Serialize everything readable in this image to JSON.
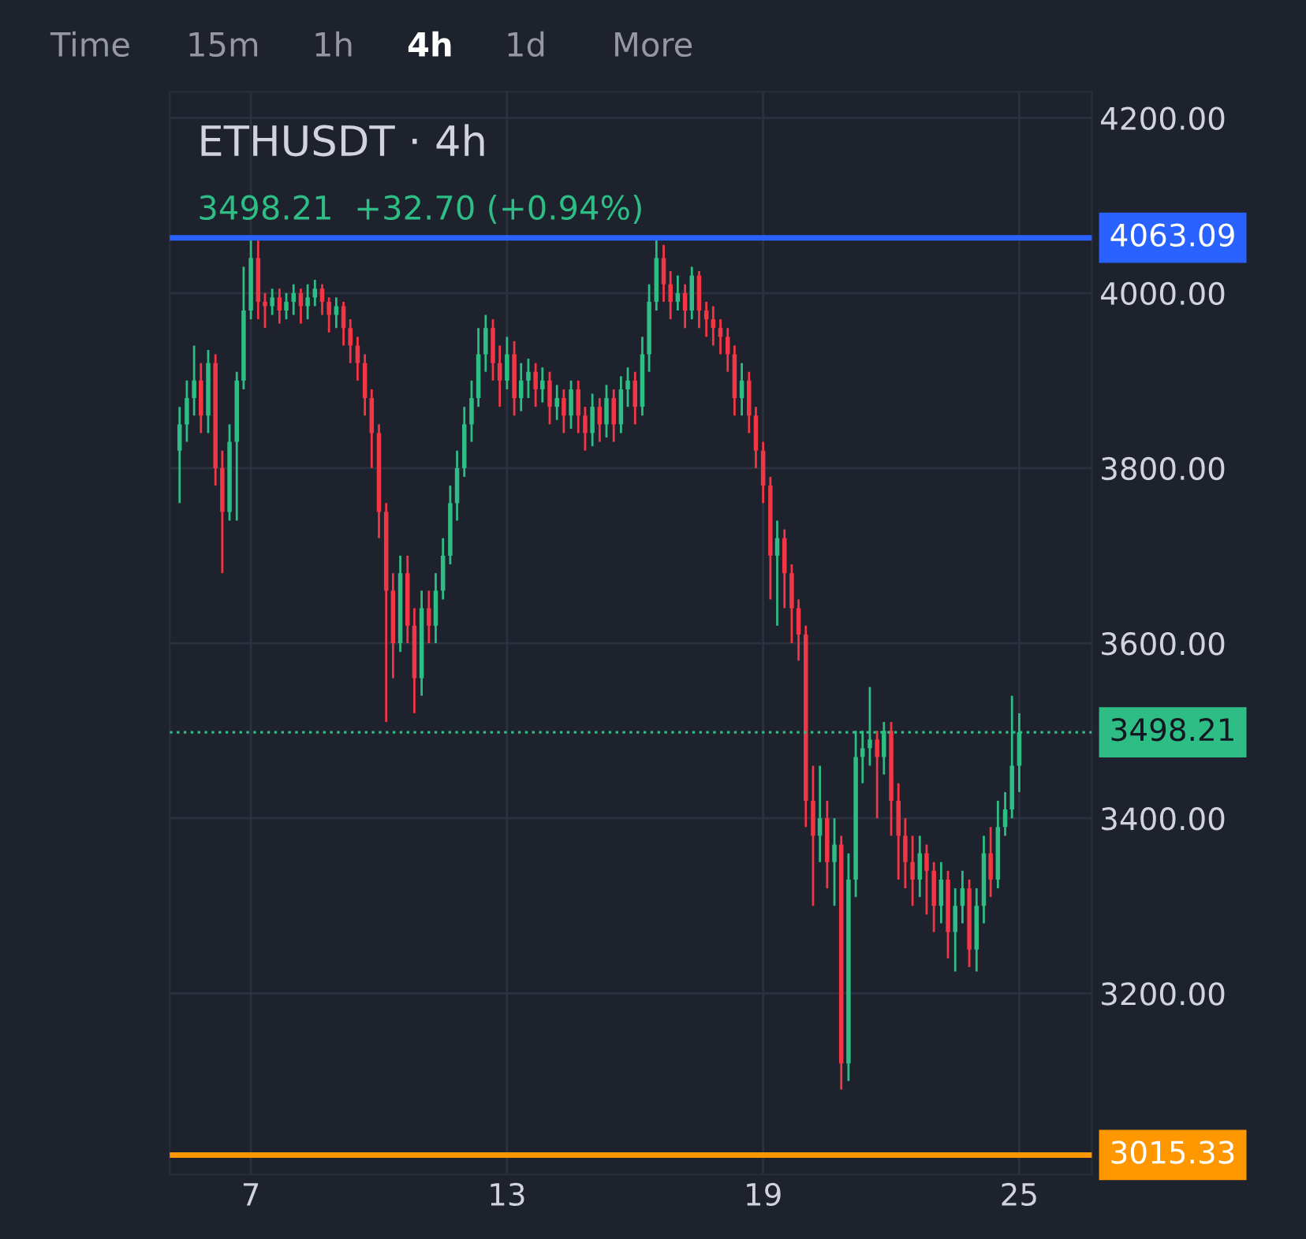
{
  "chart_data": {
    "type": "candlestick",
    "title": "ETHUSDT · 4h",
    "subtitle": "3498.21  +32.70 (+0.94%)",
    "annotations": [
      "Time",
      "15m",
      "1h",
      "4h",
      "1d",
      "More"
    ],
    "x": [
      5.33,
      5.5,
      5.67,
      5.83,
      6,
      6.17,
      6.33,
      6.5,
      6.67,
      6.83,
      7,
      7.17,
      7.33,
      7.5,
      7.67,
      7.83,
      8,
      8.17,
      8.33,
      8.5,
      8.67,
      8.83,
      9,
      9.17,
      9.33,
      9.5,
      9.67,
      9.83,
      10,
      10.17,
      10.33,
      10.5,
      10.67,
      10.83,
      11,
      11.17,
      11.33,
      11.5,
      11.67,
      11.83,
      12,
      12.17,
      12.33,
      12.5,
      12.67,
      12.83,
      13,
      13.17,
      13.33,
      13.5,
      13.67,
      13.83,
      14,
      14.17,
      14.33,
      14.5,
      14.67,
      14.83,
      15,
      15.17,
      15.33,
      15.5,
      15.67,
      15.83,
      16,
      16.17,
      16.33,
      16.5,
      16.67,
      16.83,
      17,
      17.17,
      17.33,
      17.5,
      17.67,
      17.83,
      18,
      18.17,
      18.33,
      18.5,
      18.67,
      18.83,
      19,
      19.17,
      19.33,
      19.5,
      19.67,
      19.83,
      20,
      20.17,
      20.33,
      20.5,
      20.67,
      20.83,
      21,
      21.17,
      21.33,
      21.5,
      21.67,
      21.83,
      22,
      22.17,
      22.33,
      22.5,
      22.67,
      22.83,
      23,
      23.17,
      23.33,
      23.5,
      23.67,
      23.83,
      24,
      24.17,
      24.33,
      24.5,
      24.67,
      24.83,
      25
    ],
    "ohlc": [
      [
        3820,
        3870,
        3760,
        3850
      ],
      [
        3850,
        3900,
        3830,
        3880
      ],
      [
        3880,
        3940,
        3860,
        3900
      ],
      [
        3900,
        3920,
        3840,
        3860
      ],
      [
        3860,
        3935,
        3840,
        3920
      ],
      [
        3920,
        3930,
        3780,
        3800
      ],
      [
        3800,
        3820,
        3680,
        3750
      ],
      [
        3750,
        3850,
        3740,
        3830
      ],
      [
        3830,
        3910,
        3740,
        3900
      ],
      [
        3900,
        4030,
        3890,
        3980
      ],
      [
        3980,
        4065,
        3970,
        4040
      ],
      [
        4040,
        4060,
        3970,
        3990
      ],
      [
        3990,
        4000,
        3960,
        3985
      ],
      [
        3985,
        4005,
        3975,
        3995
      ],
      [
        3995,
        4005,
        3965,
        3980
      ],
      [
        3980,
        4000,
        3970,
        3990
      ],
      [
        3990,
        4010,
        3975,
        4000
      ],
      [
        4000,
        4005,
        3965,
        3985
      ],
      [
        3985,
        4010,
        3970,
        3995
      ],
      [
        3995,
        4015,
        3985,
        4005
      ],
      [
        4005,
        4010,
        3975,
        3990
      ],
      [
        3990,
        3995,
        3955,
        3975
      ],
      [
        3975,
        3995,
        3960,
        3985
      ],
      [
        3985,
        3990,
        3940,
        3960
      ],
      [
        3960,
        3970,
        3920,
        3940
      ],
      [
        3940,
        3950,
        3900,
        3920
      ],
      [
        3920,
        3930,
        3860,
        3880
      ],
      [
        3880,
        3890,
        3800,
        3840
      ],
      [
        3840,
        3850,
        3720,
        3750
      ],
      [
        3750,
        3760,
        3510,
        3660
      ],
      [
        3660,
        3680,
        3560,
        3600
      ],
      [
        3600,
        3700,
        3590,
        3680
      ],
      [
        3680,
        3700,
        3600,
        3620
      ],
      [
        3620,
        3640,
        3520,
        3560
      ],
      [
        3560,
        3660,
        3540,
        3640
      ],
      [
        3640,
        3660,
        3600,
        3620
      ],
      [
        3620,
        3680,
        3600,
        3660
      ],
      [
        3660,
        3720,
        3650,
        3700
      ],
      [
        3700,
        3780,
        3690,
        3760
      ],
      [
        3760,
        3820,
        3740,
        3800
      ],
      [
        3800,
        3870,
        3790,
        3850
      ],
      [
        3850,
        3900,
        3830,
        3880
      ],
      [
        3880,
        3960,
        3870,
        3930
      ],
      [
        3930,
        3975,
        3910,
        3960
      ],
      [
        3960,
        3970,
        3900,
        3920
      ],
      [
        3920,
        3940,
        3870,
        3900
      ],
      [
        3900,
        3950,
        3890,
        3930
      ],
      [
        3930,
        3945,
        3860,
        3880
      ],
      [
        3880,
        3920,
        3865,
        3900
      ],
      [
        3900,
        3925,
        3880,
        3910
      ],
      [
        3910,
        3920,
        3870,
        3890
      ],
      [
        3890,
        3915,
        3875,
        3900
      ],
      [
        3900,
        3910,
        3850,
        3870
      ],
      [
        3870,
        3895,
        3855,
        3880
      ],
      [
        3880,
        3890,
        3840,
        3860
      ],
      [
        3860,
        3900,
        3845,
        3890
      ],
      [
        3890,
        3900,
        3840,
        3860
      ],
      [
        3860,
        3870,
        3820,
        3840
      ],
      [
        3840,
        3885,
        3825,
        3870
      ],
      [
        3870,
        3880,
        3830,
        3850
      ],
      [
        3850,
        3895,
        3835,
        3880
      ],
      [
        3880,
        3890,
        3830,
        3850
      ],
      [
        3850,
        3905,
        3840,
        3890
      ],
      [
        3890,
        3915,
        3870,
        3900
      ],
      [
        3900,
        3910,
        3850,
        3870
      ],
      [
        3870,
        3950,
        3860,
        3930
      ],
      [
        3930,
        4010,
        3910,
        3990
      ],
      [
        3990,
        4062,
        3980,
        4040
      ],
      [
        4040,
        4055,
        3990,
        4010
      ],
      [
        4010,
        4025,
        3970,
        3990
      ],
      [
        3990,
        4020,
        3980,
        4000
      ],
      [
        4000,
        4010,
        3960,
        3980
      ],
      [
        3980,
        4030,
        3970,
        4020
      ],
      [
        4020,
        4025,
        3960,
        3980
      ],
      [
        3980,
        3990,
        3950,
        3970
      ],
      [
        3970,
        3985,
        3940,
        3960
      ],
      [
        3960,
        3970,
        3930,
        3950
      ],
      [
        3950,
        3960,
        3910,
        3930
      ],
      [
        3930,
        3940,
        3860,
        3880
      ],
      [
        3880,
        3920,
        3860,
        3900
      ],
      [
        3900,
        3910,
        3840,
        3860
      ],
      [
        3860,
        3870,
        3800,
        3820
      ],
      [
        3820,
        3830,
        3760,
        3780
      ],
      [
        3780,
        3790,
        3650,
        3700
      ],
      [
        3700,
        3740,
        3620,
        3720
      ],
      [
        3720,
        3730,
        3640,
        3680
      ],
      [
        3680,
        3690,
        3600,
        3640
      ],
      [
        3640,
        3650,
        3580,
        3610
      ],
      [
        3610,
        3620,
        3390,
        3420
      ],
      [
        3420,
        3460,
        3300,
        3380
      ],
      [
        3380,
        3460,
        3350,
        3400
      ],
      [
        3400,
        3420,
        3320,
        3350
      ],
      [
        3350,
        3400,
        3300,
        3370
      ],
      [
        3370,
        3380,
        3090,
        3120
      ],
      [
        3120,
        3360,
        3100,
        3330
      ],
      [
        3330,
        3500,
        3310,
        3470
      ],
      [
        3470,
        3500,
        3440,
        3480
      ],
      [
        3480,
        3550,
        3460,
        3490
      ],
      [
        3490,
        3500,
        3400,
        3470
      ],
      [
        3470,
        3510,
        3450,
        3500
      ],
      [
        3500,
        3510,
        3380,
        3420
      ],
      [
        3420,
        3440,
        3330,
        3380
      ],
      [
        3380,
        3400,
        3320,
        3350
      ],
      [
        3350,
        3380,
        3300,
        3330
      ],
      [
        3330,
        3380,
        3310,
        3360
      ],
      [
        3360,
        3370,
        3290,
        3340
      ],
      [
        3340,
        3350,
        3270,
        3300
      ],
      [
        3300,
        3350,
        3280,
        3330
      ],
      [
        3330,
        3340,
        3240,
        3270
      ],
      [
        3270,
        3320,
        3225,
        3300
      ],
      [
        3300,
        3340,
        3280,
        3320
      ],
      [
        3320,
        3330,
        3230,
        3250
      ],
      [
        3250,
        3320,
        3225,
        3300
      ],
      [
        3300,
        3380,
        3280,
        3360
      ],
      [
        3360,
        3390,
        3310,
        3330
      ],
      [
        3330,
        3420,
        3320,
        3390
      ],
      [
        3390,
        3430,
        3380,
        3410
      ],
      [
        3410,
        3540,
        3400,
        3460
      ],
      [
        3460,
        3520,
        3430,
        3498.21
      ]
    ],
    "colors": [
      "#2ebd85",
      "#2ebd85",
      "#2ebd85",
      "#f23645",
      "#2ebd85",
      "#f23645",
      "#f23645",
      "#2ebd85",
      "#2ebd85",
      "#2ebd85",
      "#2ebd85",
      "#f23645",
      "#f23645",
      "#2ebd85",
      "#f23645",
      "#2ebd85",
      "#2ebd85",
      "#f23645",
      "#2ebd85",
      "#2ebd85",
      "#f23645",
      "#f23645",
      "#2ebd85",
      "#f23645",
      "#f23645",
      "#f23645",
      "#f23645",
      "#f23645",
      "#f23645",
      "#f23645",
      "#f23645",
      "#2ebd85",
      "#f23645",
      "#f23645",
      "#2ebd85",
      "#f23645",
      "#2ebd85",
      "#2ebd85",
      "#2ebd85",
      "#2ebd85",
      "#2ebd85",
      "#2ebd85",
      "#2ebd85",
      "#2ebd85",
      "#f23645",
      "#f23645",
      "#2ebd85",
      "#f23645",
      "#2ebd85",
      "#2ebd85",
      "#f23645",
      "#2ebd85",
      "#f23645",
      "#2ebd85",
      "#f23645",
      "#2ebd85",
      "#f23645",
      "#f23645",
      "#2ebd85",
      "#f23645",
      "#2ebd85",
      "#f23645",
      "#2ebd85",
      "#2ebd85",
      "#f23645",
      "#2ebd85",
      "#2ebd85",
      "#2ebd85",
      "#f23645",
      "#f23645",
      "#2ebd85",
      "#f23645",
      "#2ebd85",
      "#f23645",
      "#f23645",
      "#f23645",
      "#f23645",
      "#f23645",
      "#f23645",
      "#2ebd85",
      "#f23645",
      "#f23645",
      "#f23645",
      "#f23645",
      "#2ebd85",
      "#f23645",
      "#f23645",
      "#f23645",
      "#f23645",
      "#f23645",
      "#2ebd85",
      "#f23645",
      "#2ebd85",
      "#f23645",
      "#2ebd85",
      "#2ebd85",
      "#2ebd85",
      "#2ebd85",
      "#f23645",
      "#2ebd85",
      "#f23645",
      "#f23645",
      "#f23645",
      "#f23645",
      "#2ebd85",
      "#f23645",
      "#f23645",
      "#2ebd85",
      "#f23645",
      "#2ebd85",
      "#2ebd85",
      "#f23645",
      "#2ebd85",
      "#2ebd85",
      "#f23645",
      "#2ebd85",
      "#2ebd85",
      "#2ebd85",
      "#2ebd85"
    ],
    "xlim": [
      5.1,
      26.7
    ],
    "xticks": [
      7,
      13,
      19,
      25
    ],
    "ylim": [
      2993,
      4230
    ],
    "yticks": [
      {
        "value": 3200,
        "label": "3200.00"
      },
      {
        "value": 3400,
        "label": "3400.00"
      },
      {
        "value": 3600,
        "label": "3600.00"
      },
      {
        "value": 3800,
        "label": "3800.00"
      },
      {
        "value": 4000,
        "label": "4000.00"
      },
      {
        "value": 4200,
        "label": "4200.00"
      }
    ],
    "grid": true,
    "ref_lines": [
      {
        "axis": "y",
        "value": 4063.09,
        "label": "4063.09",
        "color": "#2962ff",
        "line_style": "solid"
      },
      {
        "axis": "y",
        "value": 3498.21,
        "label": "3498.21",
        "color": "#2ebd85",
        "line_style": "dotted"
      },
      {
        "axis": "y",
        "value": 3015.33,
        "label": "3015.33",
        "color": "#ff9800",
        "line_style": "solid"
      }
    ]
  }
}
